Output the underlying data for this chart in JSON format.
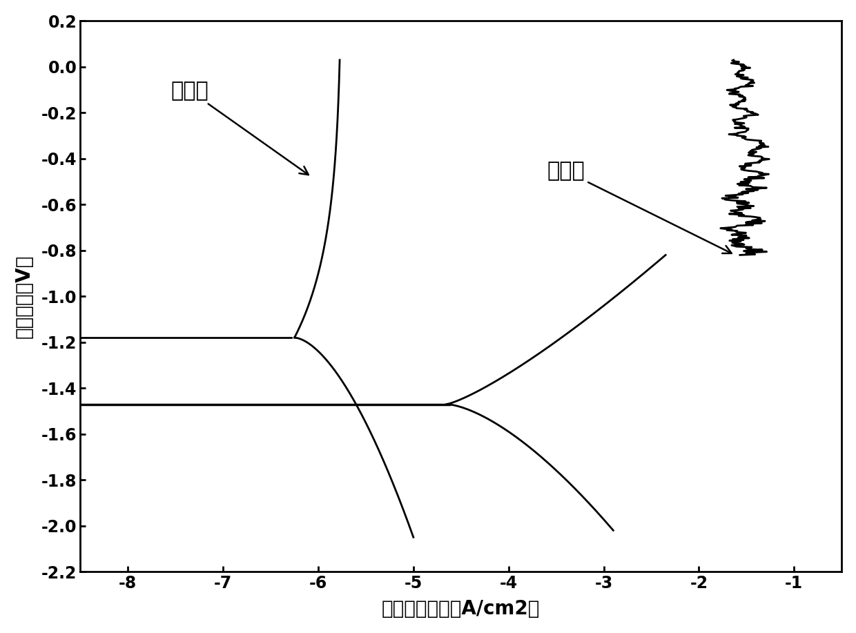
{
  "xlim": [
    -8.5,
    -0.5
  ],
  "ylim": [
    -2.2,
    0.2
  ],
  "xticks": [
    -8,
    -7,
    -6,
    -5,
    -4,
    -3,
    -2,
    -1
  ],
  "yticks": [
    -2.2,
    -2.0,
    -1.8,
    -1.6,
    -1.4,
    -1.2,
    -1.0,
    -0.8,
    -0.6,
    -0.4,
    -0.2,
    0.0,
    0.2
  ],
  "xlabel": "电流密度对数（A/cm2）",
  "ylabel": "极化电位（V）",
  "label_after": "处理后",
  "label_before": "处理前",
  "background_color": "#ffffff",
  "line_color": "#000000",
  "linewidth": 2.0
}
